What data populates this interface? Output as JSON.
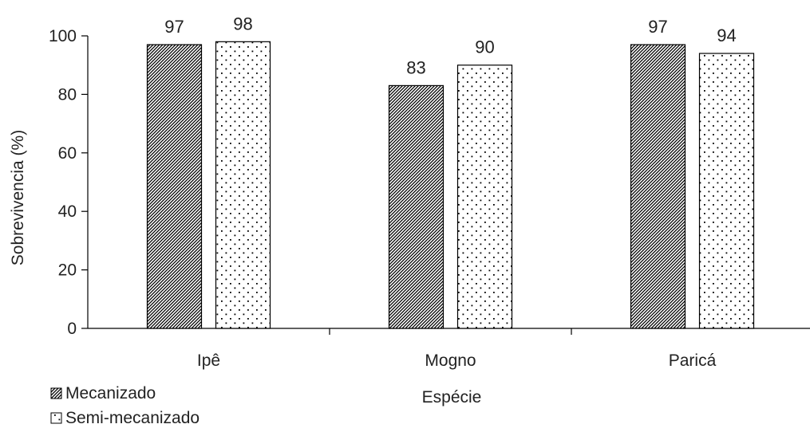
{
  "chart_data": {
    "type": "bar",
    "title": "",
    "xlabel": "Espécie",
    "ylabel": "Sobrevivencia (%)",
    "categories": [
      "Ipê",
      "Mogno",
      "Paricá"
    ],
    "ylim": [
      0,
      100
    ],
    "yticks": [
      0,
      20,
      40,
      60,
      80,
      100
    ],
    "grid": false,
    "legend_position": "bottom-left",
    "series": [
      {
        "name": "Mecanizado",
        "pattern": "diagonal-hatch",
        "values": [
          97,
          83,
          97
        ],
        "labels": [
          "97",
          "83",
          "97"
        ]
      },
      {
        "name": "Semi-mecanizado",
        "pattern": "dots",
        "values": [
          98,
          90,
          94
        ],
        "labels": [
          "98",
          "90",
          "94"
        ]
      }
    ],
    "colors": {
      "bar_border": "#000000",
      "pattern_ink": "#000000",
      "background": "#ffffff",
      "text": "#222222"
    }
  }
}
